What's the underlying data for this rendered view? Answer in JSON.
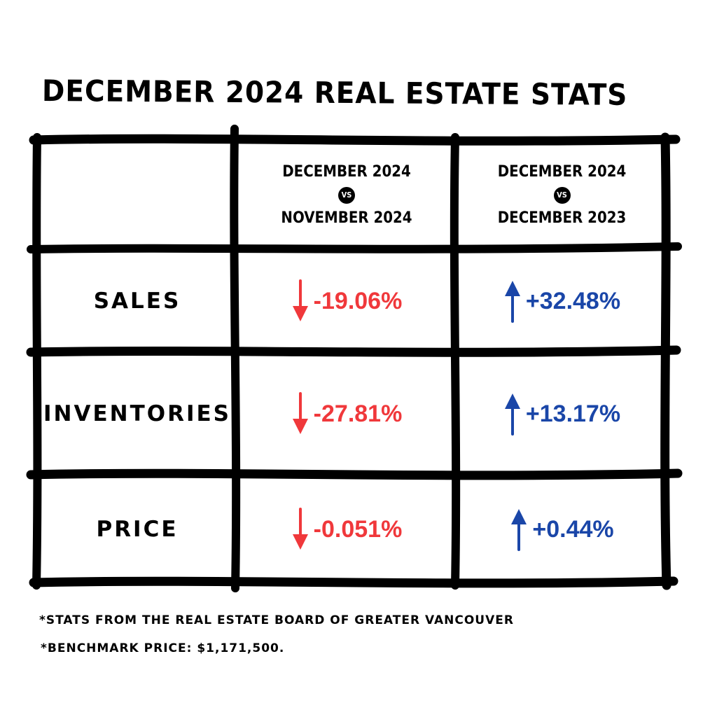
{
  "title": "DECEMBER 2024 REAL ESTATE STATS",
  "columns": [
    {
      "top": "DECEMBER 2024",
      "vs": "VS",
      "bottom": "NOVEMBER 2024"
    },
    {
      "top": "DECEMBER 2024",
      "vs": "VS",
      "bottom": "DECEMBER 2023"
    }
  ],
  "rows": [
    {
      "label": "SALES",
      "mom": {
        "value": "-19.06%",
        "direction": "down"
      },
      "yoy": {
        "value": "+32.48%",
        "direction": "up"
      }
    },
    {
      "label": "INVENTORIES",
      "mom": {
        "value": "-27.81%",
        "direction": "down"
      },
      "yoy": {
        "value": "+13.17%",
        "direction": "up"
      }
    },
    {
      "label": "PRICE",
      "mom": {
        "value": "-0.051%",
        "direction": "down"
      },
      "yoy": {
        "value": "+0.44%",
        "direction": "up"
      }
    }
  ],
  "notes": [
    "*STATS FROM THE REAL ESTATE BOARD OF GREATER VANCOUVER",
    "*BENCHMARK PRICE: $1,171,500."
  ],
  "colors": {
    "down": "#f0383b",
    "up": "#1a46a8",
    "lines": "#000000"
  },
  "icons": {
    "down": "arrow-down-icon",
    "up": "arrow-up-icon"
  }
}
